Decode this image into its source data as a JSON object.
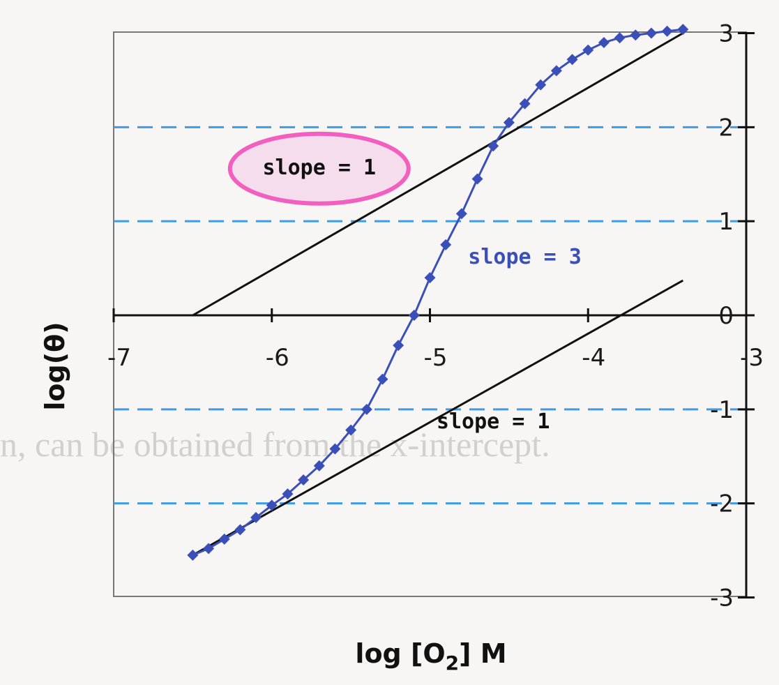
{
  "background_text": "n, can be obtained from the x-intercept.",
  "chart_data": {
    "type": "line",
    "title": "",
    "xlabel": "log [O",
    "xlabel_sub": "2",
    "xlabel_suffix": "] M",
    "ylabel": "log(θ)",
    "xlim": [
      -7,
      -3
    ],
    "ylim": [
      -3,
      3
    ],
    "x_ticks": [
      -7,
      -6,
      -5,
      -4,
      -3
    ],
    "x_tick_labels": [
      "-7",
      "-6",
      "-5",
      "-4",
      "-3"
    ],
    "y_ticks": [
      -3,
      -2,
      -1,
      0,
      1,
      2,
      3
    ],
    "y_tick_labels": [
      "-3",
      "-2",
      "-1",
      "0",
      "1",
      "2",
      "3"
    ],
    "dashed_reference_y": [
      2,
      1,
      -1,
      -2
    ],
    "colors": {
      "asymptote": "#111111",
      "curve": "#3a4fb8",
      "dashed": "#3e9be6",
      "highlight_stroke": "#f25fbf",
      "highlight_fill": "#f6d4ea"
    },
    "series": [
      {
        "x": [
          -6.5,
          -3.4
        ],
        "y": [
          0.0,
          3.0
        ]
      },
      {
        "x": [
          -6.5,
          -3.4
        ],
        "y": [
          -2.55,
          0.37
        ]
      },
      {
        "x": [
          -6.5,
          -6.4,
          -6.3,
          -6.2,
          -6.1,
          -6.0,
          -5.9,
          -5.8,
          -5.7,
          -5.6,
          -5.5,
          -5.4,
          -5.3,
          -5.2,
          -5.1,
          -5.0,
          -4.9,
          -4.8,
          -4.7,
          -4.6,
          -4.5,
          -4.4,
          -4.3,
          -4.2,
          -4.1,
          -4.0,
          -3.9,
          -3.8,
          -3.7,
          -3.6,
          -3.5,
          -3.4
        ],
        "y": [
          -2.55,
          -2.48,
          -2.38,
          -2.28,
          -2.15,
          -2.02,
          -1.9,
          -1.75,
          -1.6,
          -1.42,
          -1.22,
          -1.0,
          -0.68,
          -0.32,
          0.0,
          0.4,
          0.75,
          1.08,
          1.45,
          1.8,
          2.05,
          2.25,
          2.45,
          2.6,
          2.72,
          2.82,
          2.9,
          2.95,
          2.98,
          3.0,
          3.02,
          3.04
        ]
      }
    ],
    "annotations": [
      {
        "text": "slope = 1",
        "x": -5.7,
        "y": 1.5,
        "highlighted": true,
        "color": "#111111"
      },
      {
        "text": "slope = 3",
        "x": -4.4,
        "y": 0.55,
        "highlighted": false,
        "color": "#3a4fb8"
      },
      {
        "text": "slope = 1",
        "x": -4.6,
        "y": -1.2,
        "highlighted": false,
        "color": "#111111"
      }
    ]
  }
}
